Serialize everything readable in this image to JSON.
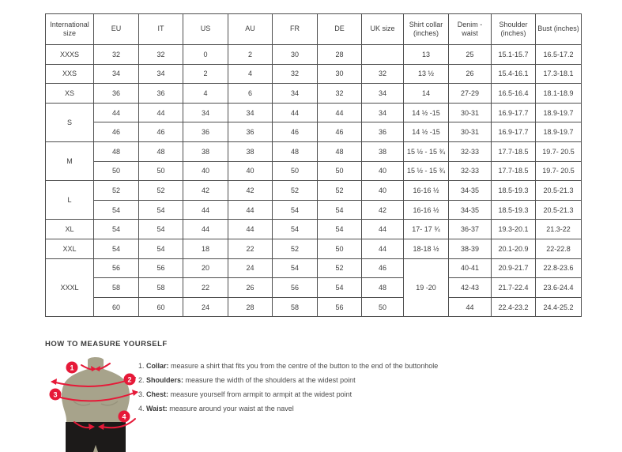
{
  "table": {
    "columns": [
      "International size",
      "EU",
      "IT",
      "US",
      "AU",
      "FR",
      "DE",
      "UK size",
      "Shirt collar (inches)",
      "Denim - waist",
      "Shoulder (inches)",
      "Bust (inches)"
    ],
    "groups": [
      {
        "size": "XXXS",
        "rows": [
          [
            "32",
            "32",
            "0",
            "2",
            "30",
            "28",
            "",
            "13",
            "25",
            "15.1-15.7",
            "16.5-17.2"
          ]
        ]
      },
      {
        "size": "XXS",
        "rows": [
          [
            "34",
            "34",
            "2",
            "4",
            "32",
            "30",
            "32",
            "13 ½",
            "26",
            "15.4-16.1",
            "17.3-18.1"
          ]
        ]
      },
      {
        "size": "XS",
        "rows": [
          [
            "36",
            "36",
            "4",
            "6",
            "34",
            "32",
            "34",
            "14",
            "27-29",
            "16.5-16.4",
            "18.1-18.9"
          ]
        ]
      },
      {
        "size": "S",
        "rows": [
          [
            "44",
            "44",
            "34",
            "34",
            "44",
            "44",
            "34",
            "14 ½ -15",
            "30-31",
            "16.9-17.7",
            "18.9-19.7"
          ],
          [
            "46",
            "46",
            "36",
            "36",
            "46",
            "46",
            "36",
            "14 ½ -15",
            "30-31",
            "16.9-17.7",
            "18.9-19.7"
          ]
        ]
      },
      {
        "size": "M",
        "rows": [
          [
            "48",
            "48",
            "38",
            "38",
            "48",
            "48",
            "38",
            "15 ½ - 15 ¾",
            "32-33",
            "17.7-18.5",
            "19.7- 20.5"
          ],
          [
            "50",
            "50",
            "40",
            "40",
            "50",
            "50",
            "40",
            "15 ½ - 15 ¾",
            "32-33",
            "17.7-18.5",
            "19.7- 20.5"
          ]
        ]
      },
      {
        "size": "L",
        "rows": [
          [
            "52",
            "52",
            "42",
            "42",
            "52",
            "52",
            "40",
            "16-16 ½",
            "34-35",
            "18.5-19.3",
            "20.5-21.3"
          ],
          [
            "54",
            "54",
            "44",
            "44",
            "54",
            "54",
            "42",
            "16-16 ½",
            "34-35",
            "18.5-19.3",
            "20.5-21.3"
          ]
        ]
      },
      {
        "size": "XL",
        "rows": [
          [
            "54",
            "54",
            "44",
            "44",
            "54",
            "54",
            "44",
            "17- 17 ¾",
            "36-37",
            "19.3-20.1",
            "21.3-22"
          ]
        ]
      },
      {
        "size": "XXL",
        "rows": [
          [
            "54",
            "54",
            "18",
            "22",
            "52",
            "50",
            "44",
            "18-18 ½",
            "38-39",
            "20.1-20.9",
            "22-22.8"
          ]
        ]
      },
      {
        "size": "XXXL",
        "rows": [
          [
            "56",
            "56",
            "20",
            "24",
            "54",
            "52",
            "46",
            {
              "value": "19 -20",
              "rowspan": 3
            },
            "40-41",
            "20.9-21.7",
            "22.8-23.6"
          ],
          [
            "58",
            "58",
            "22",
            "26",
            "56",
            "54",
            "48",
            "42-43",
            "21.7-22.4",
            "23.6-24.4"
          ],
          [
            "60",
            "60",
            "24",
            "28",
            "58",
            "56",
            "50",
            "44",
            "22.4-23.2",
            "24.4-25.2"
          ]
        ]
      }
    ]
  },
  "measure": {
    "title": "HOW TO MEASURE YOURSELF",
    "items": [
      {
        "num": "1.",
        "label": "Collar:",
        "text": "measure a shirt that fits you from the centre of the button to the end of the buttonhole"
      },
      {
        "num": "2.",
        "label": "Shoulders:",
        "text": "measure the width of the shoulders at the widest point"
      },
      {
        "num": "3.",
        "label": "Chest:",
        "text": "measure yourself from armpit to armpit at the widest point"
      },
      {
        "num": "4.",
        "label": "Waist:",
        "text": "measure around your waist at the navel"
      }
    ],
    "diagram_markers": [
      "1",
      "2",
      "3",
      "4"
    ]
  },
  "colors": {
    "accent_red": "#e61938",
    "torso": "#a7a38b",
    "torso_shade": "#918d76",
    "shorts": "#1c1a19",
    "table_border": "#4e4e4e",
    "text": "#3d3d3d"
  }
}
